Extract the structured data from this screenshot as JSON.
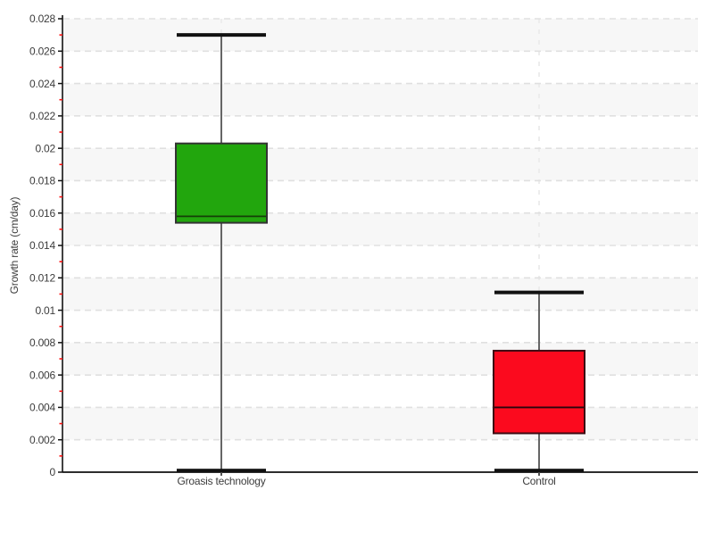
{
  "figure": {
    "background": "#ffffff",
    "band_color": "#f7f7f7",
    "grid_color": "#e0e0e0",
    "category_grid_color": "#ededed",
    "axis_color": "#111111",
    "text_color": "#3c3c3c",
    "minor_tick_color": "#ff1111",
    "whisker_color": "#666666",
    "cap_color": "#111111"
  },
  "chart_data": {
    "type": "boxplot",
    "title": "",
    "xlabel": "",
    "ylabel": "Growth rate (cm/day)",
    "ylim": [
      0,
      0.028
    ],
    "y_major_step": 0.002,
    "y_minor_step": 0.001,
    "y_tick_labels": [
      "0",
      "0.002",
      "0.004",
      "0.006",
      "0.008",
      "0.01",
      "0.012",
      "0.014",
      "0.016",
      "0.018",
      "0.02",
      "0.022",
      "0.024",
      "0.026",
      "0.028"
    ],
    "grid": "horizontal dashed gridlines at major steps, alternating gray/white bands, red minor ticks",
    "legend": "none",
    "categories": [
      "Groasis technology",
      "Control"
    ],
    "series": [
      {
        "name": "Groasis technology",
        "min": 0.0001,
        "q1": 0.0154,
        "median": 0.0158,
        "q3": 0.0203,
        "max": 0.027,
        "fill": "#22a60d",
        "border": "#333333",
        "median_color": "#153f08"
      },
      {
        "name": "Control",
        "min": 0.0001,
        "q1": 0.0024,
        "median": 0.004,
        "q3": 0.0075,
        "max": 0.0111,
        "fill": "#fb0a1e",
        "border": "#3c0a12",
        "median_color": "#2a060c"
      }
    ]
  }
}
